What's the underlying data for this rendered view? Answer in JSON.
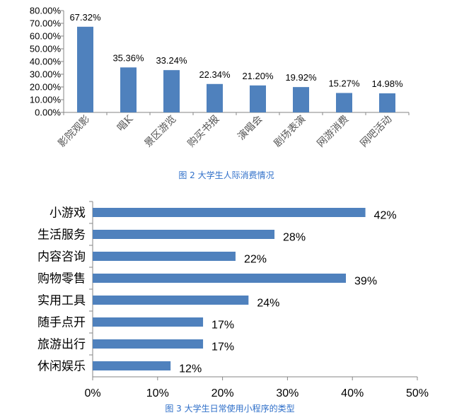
{
  "chart_data": [
    {
      "type": "bar",
      "caption": "图 2 大学生人际消费情况",
      "categories": [
        "影院观影",
        "唱K",
        "景区游览",
        "购买书报",
        "演唱会",
        "剧场表演",
        "网游消费",
        "网吧活动"
      ],
      "values": [
        67.32,
        35.36,
        33.24,
        22.34,
        21.2,
        19.92,
        15.27,
        14.98
      ],
      "value_labels": [
        "67.32%",
        "35.36%",
        "33.24%",
        "22.34%",
        "21.20%",
        "19.92%",
        "15.27%",
        "14.98%"
      ],
      "yticks": [
        "0.00%",
        "10.00%",
        "20.00%",
        "30.00%",
        "40.00%",
        "50.00%",
        "60.00%",
        "70.00%",
        "80.00%"
      ],
      "ylim": [
        0,
        80
      ],
      "bar_color": "#4f81bd",
      "grid": false
    },
    {
      "type": "bar",
      "orientation": "horizontal",
      "caption": "图 3 大学生日常使用小程序的类型",
      "categories": [
        "小游戏",
        "生活服务",
        "内容咨询",
        "购物零售",
        "实用工具",
        "随手点开",
        "旅游出行",
        "休闲娱乐"
      ],
      "values": [
        42,
        28,
        22,
        39,
        24,
        17,
        17,
        12
      ],
      "value_labels": [
        "42%",
        "28%",
        "22%",
        "39%",
        "24%",
        "17%",
        "17%",
        "12%"
      ],
      "xticks": [
        "0%",
        "10%",
        "20%",
        "30%",
        "40%",
        "50%"
      ],
      "xlim": [
        0,
        50
      ],
      "bar_color": "#4f81bd",
      "grid": false
    }
  ]
}
